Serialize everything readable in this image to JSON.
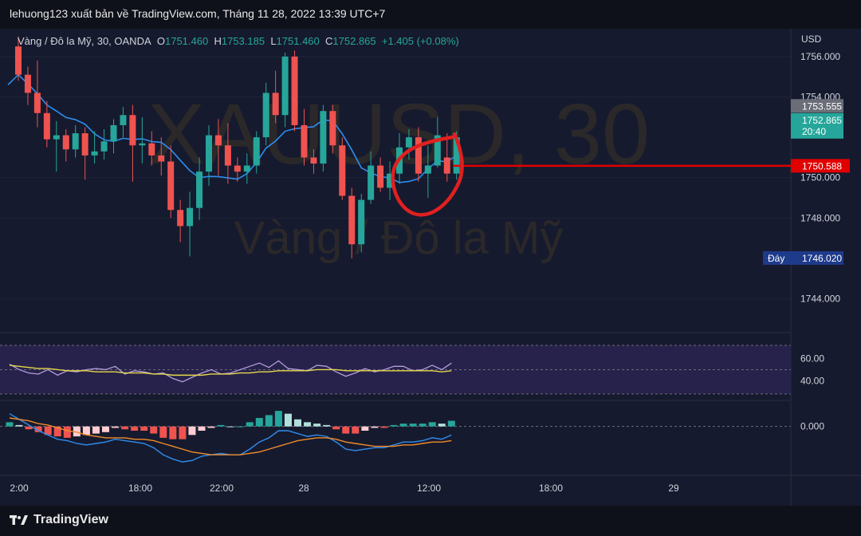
{
  "header": {
    "publish_line": "lehuong123 xuất bản về TradingView.com, Tháng 11 28, 2022 13:39 UTC+7"
  },
  "legend": {
    "symbol": "Vàng / Đô la Mỹ, 30, OANDA",
    "open_label": "O",
    "open": "1751.460",
    "high_label": "H",
    "high": "1753.185",
    "low_label": "L",
    "low": "1751.460",
    "close_label": "C",
    "close": "1752.865",
    "change": "+1.405 (+0.08%)"
  },
  "watermark": {
    "ticker": "XAUUSD, 30",
    "name": "Vàng / Đô la Mỹ"
  },
  "price_axis": {
    "currency": "USD",
    "ticks": [
      "1756.000",
      "1754.000",
      "1750.000",
      "1748.000",
      "1744.000"
    ],
    "tick_values": [
      1756,
      1754,
      1750,
      1748,
      1744
    ],
    "high_tag": "1753.555",
    "last_tag_price": "1752.865",
    "last_tag_timer": "20:40",
    "hline_tag": "1750.588",
    "low_tag_label": "Đáy",
    "low_tag": "1746.020",
    "colors": {
      "last": "#26a69a",
      "hline": "#e00000",
      "low": "#1e3a8a",
      "high": "#6b6e78"
    }
  },
  "rsi": {
    "ticks": [
      "60.00",
      "40.00"
    ],
    "colors": {
      "rsi": "#b39ddb",
      "ma": "#e6d84a",
      "band": "#2a2550"
    }
  },
  "macd": {
    "ticks": [
      "0.000"
    ],
    "colors": {
      "macd": "#2d8ef0",
      "signal": "#f08c2a",
      "hist_up": "#26a69a",
      "hist_up_light": "#b2dfdb",
      "hist_down": "#ef5350",
      "hist_down_light": "#ffcdd2"
    }
  },
  "time_axis": {
    "labels": [
      "2:00",
      "18:00",
      "22:00",
      "28",
      "12:00",
      "18:00",
      "29"
    ]
  },
  "footer": {
    "brand": "TradingView"
  },
  "chart_data": {
    "type": "candlestick",
    "timeframe": "30",
    "y_range": [
      1742.6,
      1757.3
    ],
    "hline": 1750.588,
    "candles": [
      [
        1756.5,
        1757.0,
        1754.8,
        1755.1
      ],
      [
        1755.1,
        1755.5,
        1753.6,
        1754.2
      ],
      [
        1754.2,
        1755.8,
        1752.5,
        1753.2
      ],
      [
        1753.2,
        1753.8,
        1751.5,
        1751.9
      ],
      [
        1751.9,
        1752.8,
        1750.3,
        1752.1
      ],
      [
        1752.1,
        1752.4,
        1750.8,
        1751.4
      ],
      [
        1751.4,
        1752.6,
        1751.0,
        1752.2
      ],
      [
        1752.2,
        1752.5,
        1749.9,
        1751.1
      ],
      [
        1751.1,
        1752.3,
        1750.7,
        1751.3
      ],
      [
        1751.3,
        1752.4,
        1750.9,
        1751.8
      ],
      [
        1751.8,
        1752.9,
        1751.2,
        1752.6
      ],
      [
        1752.6,
        1753.5,
        1752.0,
        1753.1
      ],
      [
        1753.1,
        1753.6,
        1749.8,
        1751.6
      ],
      [
        1751.6,
        1753.0,
        1750.7,
        1751.7
      ],
      [
        1751.7,
        1752.3,
        1750.6,
        1751.1
      ],
      [
        1751.1,
        1752.0,
        1750.1,
        1750.8
      ],
      [
        1750.8,
        1751.6,
        1748.0,
        1748.4
      ],
      [
        1748.4,
        1748.9,
        1746.8,
        1747.6
      ],
      [
        1747.6,
        1749.3,
        1746.1,
        1748.5
      ],
      [
        1748.5,
        1751.0,
        1747.9,
        1750.3
      ],
      [
        1750.3,
        1752.6,
        1749.6,
        1752.1
      ],
      [
        1752.1,
        1752.9,
        1750.1,
        1751.6
      ],
      [
        1751.6,
        1752.7,
        1749.7,
        1750.6
      ],
      [
        1750.6,
        1751.0,
        1749.8,
        1750.3
      ],
      [
        1750.3,
        1751.2,
        1749.7,
        1750.6
      ],
      [
        1750.6,
        1752.3,
        1750.2,
        1752.0
      ],
      [
        1752.0,
        1754.7,
        1751.6,
        1754.2
      ],
      [
        1754.2,
        1755.3,
        1752.7,
        1753.1
      ],
      [
        1753.1,
        1756.2,
        1752.5,
        1756.0
      ],
      [
        1756.0,
        1756.3,
        1752.3,
        1752.6
      ],
      [
        1752.6,
        1753.4,
        1750.6,
        1751.0
      ],
      [
        1751.0,
        1751.4,
        1750.2,
        1750.7
      ],
      [
        1750.7,
        1753.6,
        1750.3,
        1753.3
      ],
      [
        1753.3,
        1753.6,
        1751.2,
        1751.6
      ],
      [
        1751.6,
        1752.0,
        1748.9,
        1749.1
      ],
      [
        1749.1,
        1749.5,
        1746.0,
        1746.7
      ],
      [
        1746.7,
        1749.2,
        1746.3,
        1748.9
      ],
      [
        1748.9,
        1751.3,
        1748.7,
        1750.6
      ],
      [
        1750.6,
        1751.0,
        1749.3,
        1749.5
      ],
      [
        1749.5,
        1750.8,
        1748.9,
        1750.2
      ],
      [
        1750.2,
        1752.2,
        1749.7,
        1751.5
      ],
      [
        1751.5,
        1752.4,
        1750.9,
        1752.0
      ],
      [
        1752.0,
        1752.5,
        1749.8,
        1750.2
      ],
      [
        1750.2,
        1751.6,
        1749.0,
        1750.6
      ],
      [
        1750.6,
        1753.0,
        1750.5,
        1752.1
      ],
      [
        1751.0,
        1752.2,
        1749.8,
        1750.2
      ],
      [
        1750.2,
        1752.3,
        1749.9,
        1752.0
      ]
    ],
    "rsi": {
      "range": [
        25,
        80
      ],
      "bands": [
        60,
        50,
        40
      ],
      "series_rsi": [
        55,
        50,
        47,
        46,
        50,
        45,
        49,
        48,
        50,
        51,
        50,
        53,
        46,
        49,
        48,
        46,
        47,
        42,
        39,
        43,
        47,
        50,
        46,
        47,
        50,
        53,
        56,
        52,
        58,
        51,
        50,
        49,
        54,
        53,
        48,
        44,
        47,
        51,
        48,
        50,
        53,
        53,
        49,
        50,
        54,
        50,
        56
      ],
      "series_ma": [
        54,
        53,
        52,
        51,
        51,
        50,
        49,
        49,
        49,
        48,
        48,
        48,
        47,
        47,
        47,
        46,
        46,
        45,
        45,
        45,
        45,
        46,
        46,
        46,
        47,
        47,
        48,
        48,
        49,
        49,
        49,
        49,
        50,
        50,
        50,
        49,
        49,
        49,
        49,
        49,
        49,
        49,
        49,
        49,
        49,
        48,
        49
      ]
    },
    "macd": {
      "range": [
        -3.0,
        1.5
      ],
      "zero": 0,
      "macd": [
        0.9,
        0.5,
        0.1,
        -0.3,
        -0.6,
        -0.9,
        -1.0,
        -1.2,
        -1.3,
        -1.2,
        -1.1,
        -0.9,
        -1.0,
        -1.1,
        -1.2,
        -1.5,
        -2.0,
        -2.3,
        -2.5,
        -2.4,
        -2.1,
        -2.0,
        -1.9,
        -2.0,
        -2.0,
        -1.6,
        -1.1,
        -0.8,
        -0.3,
        -0.3,
        -0.5,
        -0.7,
        -0.6,
        -0.7,
        -1.1,
        -1.6,
        -1.7,
        -1.6,
        -1.5,
        -1.5,
        -1.3,
        -1.1,
        -1.1,
        -1.0,
        -0.8,
        -0.9,
        -0.6
      ],
      "signal": [
        0.6,
        0.5,
        0.4,
        0.2,
        0.1,
        -0.1,
        -0.3,
        -0.4,
        -0.6,
        -0.7,
        -0.8,
        -0.8,
        -0.8,
        -0.9,
        -0.9,
        -1.0,
        -1.2,
        -1.4,
        -1.6,
        -1.8,
        -1.9,
        -2.0,
        -2.0,
        -2.0,
        -2.0,
        -1.9,
        -1.8,
        -1.6,
        -1.4,
        -1.2,
        -1.0,
        -0.9,
        -0.8,
        -0.8,
        -0.9,
        -1.1,
        -1.2,
        -1.3,
        -1.4,
        -1.4,
        -1.4,
        -1.3,
        -1.3,
        -1.2,
        -1.1,
        -1.1,
        -1.0
      ],
      "histogram": [
        0.3,
        0.1,
        -0.2,
        -0.4,
        -0.6,
        -0.7,
        -0.8,
        -0.7,
        -0.6,
        -0.5,
        -0.4,
        -0.1,
        -0.2,
        -0.3,
        -0.3,
        -0.5,
        -0.8,
        -0.9,
        -0.9,
        -0.6,
        -0.3,
        -0.1,
        0.1,
        0.0,
        0.0,
        0.3,
        0.6,
        0.8,
        1.1,
        0.9,
        0.5,
        0.3,
        0.2,
        0.1,
        -0.2,
        -0.5,
        -0.5,
        -0.3,
        -0.1,
        -0.1,
        0.1,
        0.2,
        0.2,
        0.2,
        0.3,
        0.2,
        0.4
      ]
    }
  }
}
